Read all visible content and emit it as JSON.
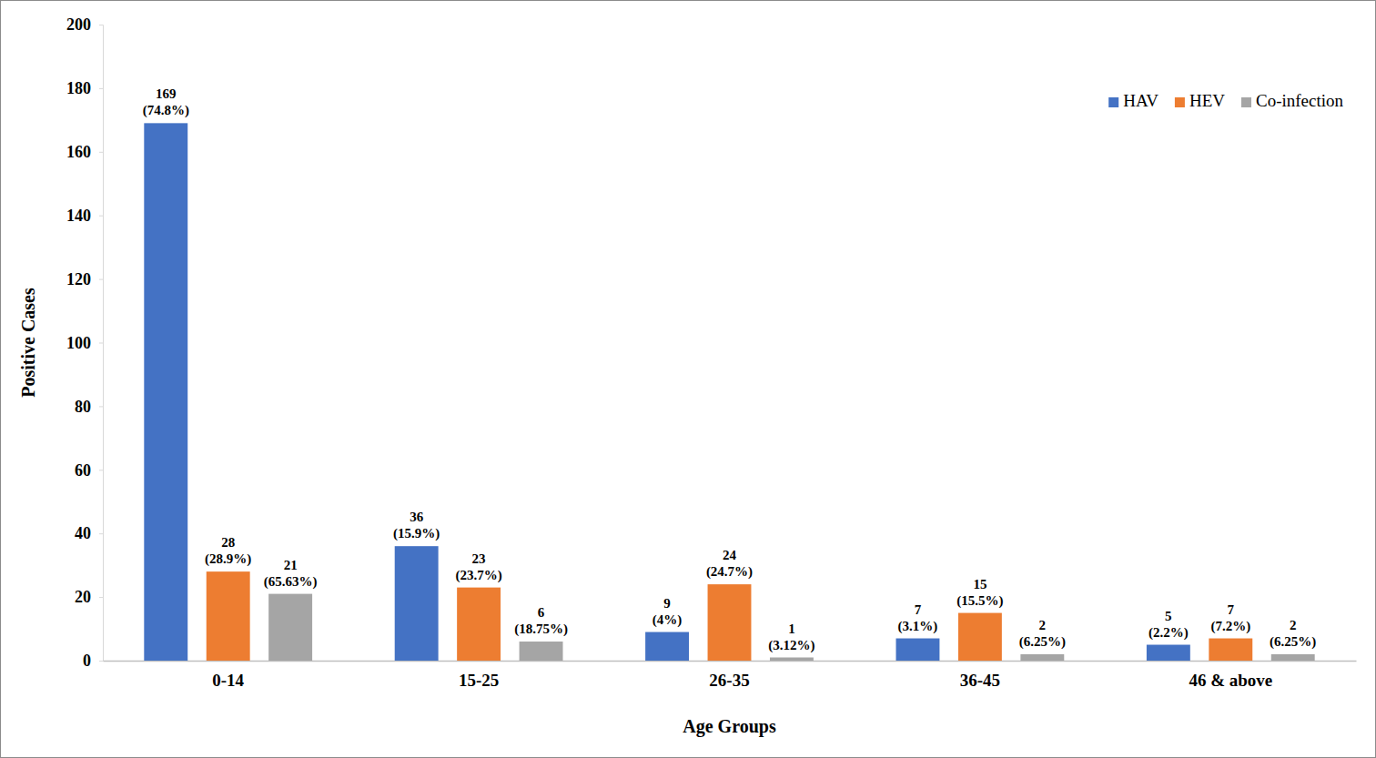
{
  "chart_data": {
    "type": "bar",
    "x_label": "Age Groups",
    "y_label": "Positive Cases",
    "categories": [
      "0-14",
      "15-25",
      "26-35",
      "36-45",
      "46 & above"
    ],
    "series": [
      {
        "name": "HAV",
        "color": "#4472c4",
        "values": [
          169,
          36,
          9,
          7,
          5
        ],
        "percent_labels": [
          "(74.8%)",
          "(15.9%)",
          "(4%)",
          "(3.1%)",
          "(2.2%)"
        ]
      },
      {
        "name": "HEV",
        "color": "#ed7d31",
        "values": [
          28,
          23,
          24,
          15,
          7
        ],
        "percent_labels": [
          "(28.9%)",
          "(23.7%)",
          "(24.7%)",
          "(15.5%)",
          "(7.2%)"
        ]
      },
      {
        "name": "Co-infection",
        "color": "#a5a5a5",
        "values": [
          21,
          6,
          1,
          2,
          2
        ],
        "percent_labels": [
          "(65.63%)",
          "(18.75%)",
          "(3.12%)",
          "(6.25%)",
          "(6.25%)"
        ]
      }
    ],
    "ylim": [
      0,
      200
    ],
    "yticks": [
      0,
      20,
      40,
      60,
      80,
      100,
      120,
      140,
      160,
      180,
      200
    ],
    "grid": false,
    "legend": "top-right",
    "data_labels": true
  }
}
